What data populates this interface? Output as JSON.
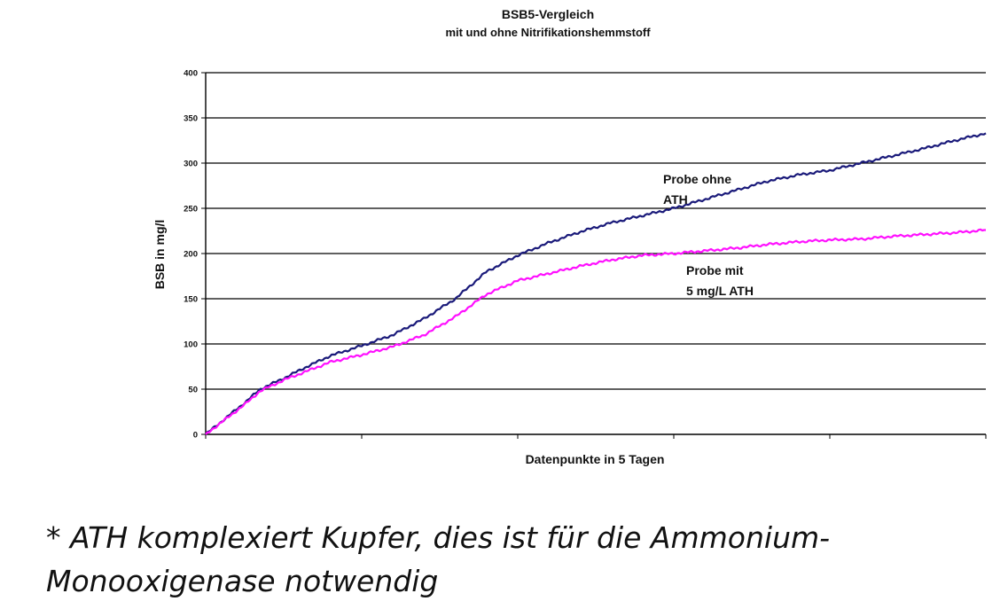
{
  "chart_data": {
    "type": "line",
    "title": "BSB5-Vergleich",
    "subtitle": "mit und ohne Nitrifikationshemmstoff",
    "xlabel": "Datenpunkte in 5 Tagen",
    "ylabel": "BSB in mg/l",
    "ylim": [
      0,
      400
    ],
    "yticks": [
      0,
      50,
      100,
      150,
      200,
      250,
      300,
      350,
      400
    ],
    "xlim": [
      0,
      5
    ],
    "grid": "horizontal",
    "series": [
      {
        "name": "Probe ohne ATH",
        "color": "#1a1a7a",
        "x": [
          0,
          0.25,
          0.35,
          0.5,
          0.65,
          0.8,
          1.0,
          1.2,
          1.4,
          1.6,
          1.8,
          2.0,
          2.2,
          2.4,
          2.6,
          2.8,
          3.0,
          3.2,
          3.4,
          3.6,
          3.8,
          4.0,
          4.2,
          4.4,
          4.6,
          4.8,
          5.0
        ],
        "y": [
          0,
          35,
          50,
          62,
          75,
          87,
          98,
          110,
          128,
          150,
          180,
          198,
          212,
          224,
          234,
          242,
          250,
          260,
          270,
          280,
          287,
          292,
          300,
          308,
          316,
          325,
          333
        ]
      },
      {
        "name": "Probe mit 5 mg/L ATH",
        "color": "#ff10ff",
        "x": [
          0,
          0.25,
          0.35,
          0.5,
          0.65,
          0.8,
          1.0,
          1.2,
          1.4,
          1.6,
          1.8,
          2.0,
          2.2,
          2.4,
          2.6,
          2.8,
          3.0,
          3.2,
          3.4,
          3.6,
          3.8,
          4.0,
          4.2,
          4.4,
          4.6,
          4.8,
          5.0
        ],
        "y": [
          0,
          33,
          48,
          60,
          70,
          80,
          88,
          97,
          110,
          130,
          155,
          170,
          178,
          186,
          193,
          198,
          200,
          203,
          206,
          210,
          213,
          215,
          216,
          219,
          221,
          223,
          226
        ]
      }
    ],
    "annotations": [
      {
        "lines": [
          "Probe ohne",
          "ATH"
        ],
        "series": 0
      },
      {
        "lines": [
          "Probe mit",
          " 5 mg/L ATH"
        ],
        "series": 1
      }
    ]
  },
  "footnote": {
    "line1": "* ATH komplexiert Kupfer, dies ist für die Ammonium-",
    "line2": "Monooxigenase notwendig"
  }
}
